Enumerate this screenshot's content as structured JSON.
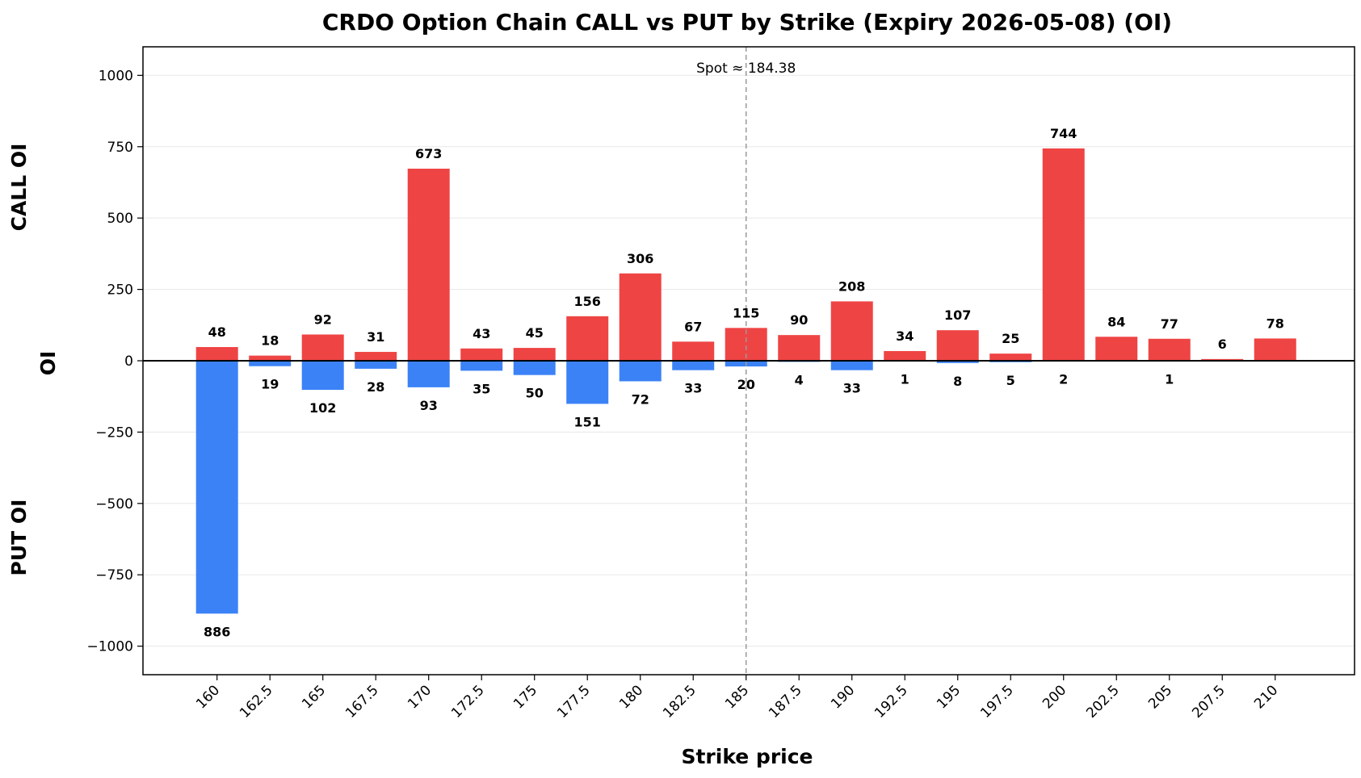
{
  "chart_data": {
    "type": "bar",
    "title": "CRDO Option Chain CALL vs PUT by Strike (Expiry 2026-05-08) (OI)",
    "xlabel": "Strike price",
    "ylabel": "OI",
    "upper_label": "CALL OI",
    "lower_label": "PUT OI",
    "categories": [
      "160",
      "162.5",
      "165",
      "167.5",
      "170",
      "172.5",
      "175",
      "177.5",
      "180",
      "182.5",
      "185",
      "187.5",
      "190",
      "192.5",
      "195",
      "197.5",
      "200",
      "202.5",
      "205",
      "207.5",
      "210"
    ],
    "strikes": [
      160,
      162.5,
      165,
      167.5,
      170,
      172.5,
      175,
      177.5,
      180,
      182.5,
      185,
      187.5,
      190,
      192.5,
      195,
      197.5,
      200,
      202.5,
      205,
      207.5,
      210
    ],
    "series": [
      {
        "name": "CALL OI",
        "color": "#ef4444",
        "values": [
          48,
          18,
          92,
          31,
          673,
          43,
          45,
          156,
          306,
          67,
          115,
          90,
          208,
          34,
          107,
          25,
          744,
          84,
          77,
          6,
          78
        ],
        "labels": [
          "48",
          "18",
          "92",
          "31",
          "673",
          "43",
          "45",
          "156",
          "306",
          "67",
          "115",
          "90",
          "208",
          "34",
          "107",
          "25",
          "744",
          "84",
          "77",
          "6",
          "78"
        ]
      },
      {
        "name": "PUT OI",
        "color": "#3b82f6",
        "values": [
          886,
          19,
          102,
          28,
          93,
          35,
          50,
          151,
          72,
          33,
          20,
          4,
          33,
          1,
          8,
          5,
          2,
          0,
          1,
          0,
          0
        ],
        "labels": [
          "886",
          "19",
          "102",
          "28",
          "93",
          "35",
          "50",
          "151",
          "72",
          "33",
          "20",
          "4",
          "33",
          "1",
          "8",
          "5",
          "2",
          "",
          "1",
          "",
          ""
        ]
      }
    ],
    "ylim": [
      -1100,
      1100
    ],
    "yticks": [
      1000,
      750,
      500,
      250,
      0,
      -250,
      -500,
      -750,
      -1000
    ],
    "ytick_labels": [
      "1000",
      "750",
      "500",
      "250",
      "0",
      "−250",
      "−500",
      "−750",
      "−1000"
    ],
    "xlim": [
      156.5,
      213.75
    ],
    "spot": {
      "value": 185,
      "label": "Spot ≈ 184.38"
    },
    "grid": "horizontal",
    "legend": "none"
  }
}
